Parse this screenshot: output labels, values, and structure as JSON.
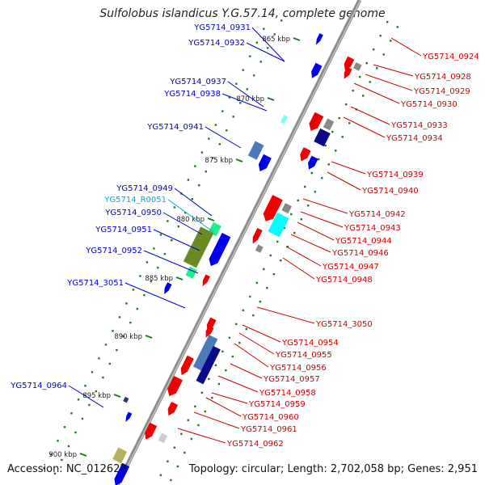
{
  "title": "Sulfolobus islandicus Y.G.57.14, complete genome",
  "accession": "Accession: NC_012622",
  "topology": "Topology: circular; Length: 2,702,058 bp; Genes: 2,951",
  "colors": {
    "left_label": "#0000cc",
    "left_rna_label": "#00aadd",
    "right_label": "#cc0000",
    "backbone": "#888888",
    "tick": "#1a7a1a"
  },
  "kbp_ticks": [
    "865 kbp",
    "870 kbp",
    "875 kbp",
    "880 kbp",
    "885 kbp",
    "890 kbp",
    "895 kbp",
    "900 kbp"
  ],
  "left_labels": [
    "YG5714_0931",
    "YG5714_0932",
    "YG5714_0937",
    "YG5714_0938",
    "YG5714_0941",
    "YG5714_0949",
    "YG5714_R0051",
    "YG5714_0950",
    "YG5714_0951",
    "YG5714_0952",
    "YG5714_3051",
    "YG5714_0964"
  ],
  "right_labels": [
    "YG5714_0924",
    "YG5714_0928",
    "YG5714_0929",
    "YG5714_0930",
    "YG5714_0933",
    "YG5714_0934",
    "YG5714_0939",
    "YG5714_0940",
    "YG5714_0942",
    "YG5714_0943",
    "YG5714_0944",
    "YG5714_0946",
    "YG5714_0947",
    "YG5714_0948",
    "YG5714_3050",
    "YG5714_0954",
    "YG5714_0955",
    "YG5714_0956",
    "YG5714_0957",
    "YG5714_0958",
    "YG5714_0959",
    "YG5714_0960",
    "YG5714_0961",
    "YG5714_0962"
  ]
}
